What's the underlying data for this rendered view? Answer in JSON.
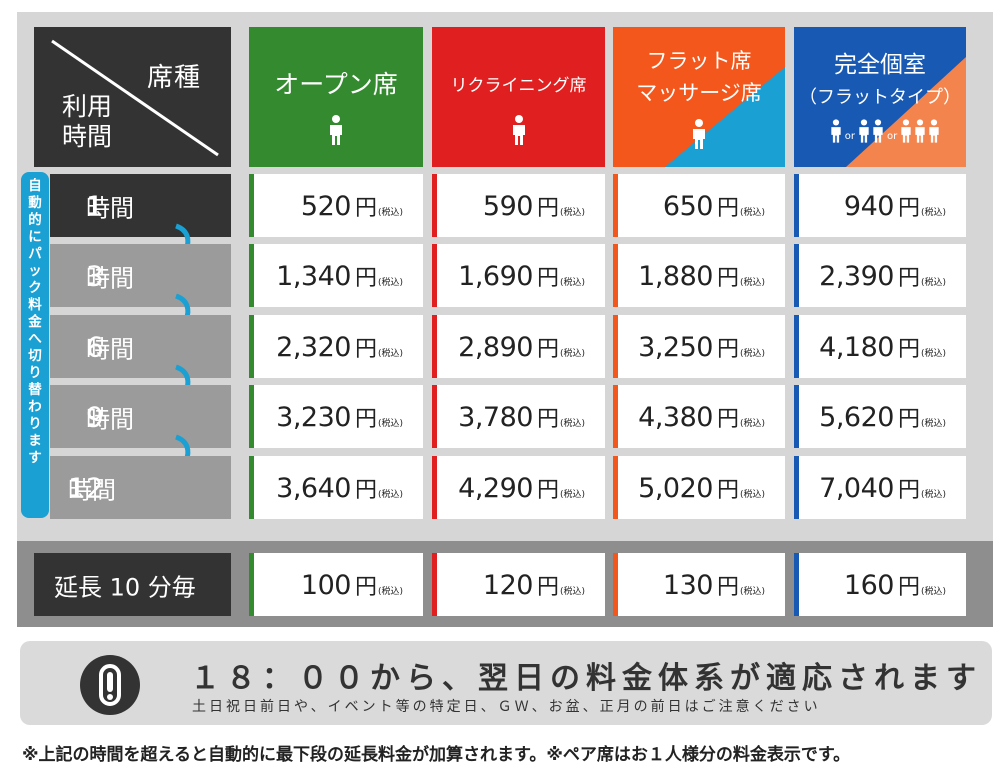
{
  "header": {
    "corner_seat": "席種",
    "corner_time": "利用時間",
    "columns": [
      {
        "label": "オープン席",
        "color": "#338a2f",
        "icon": "person-icon"
      },
      {
        "label": "リクライニング席",
        "color": "#e02020",
        "icon": "person-icon"
      },
      {
        "label_line1": "フラット席",
        "label_line2": "マッサージ席",
        "color": "#f4571b",
        "accent": "#1aa0d2",
        "icon": "person-icon"
      },
      {
        "label_line1": "完全個室",
        "label_line2": "（フラットタイプ）",
        "color": "#1859b4",
        "accent": "#f4844d",
        "icon": "person-group-icon",
        "or1": "or",
        "or2": "or"
      }
    ]
  },
  "side_note": "自動的にパック料金へ切り替わります",
  "tax_label": "(税込)",
  "yen": "円",
  "rows": [
    {
      "label_num": "1",
      "label_unit": "時間",
      "prices": [
        "520",
        "590",
        "650",
        "940"
      ]
    },
    {
      "label_num": "3",
      "label_unit": "時間",
      "prices": [
        "1,340",
        "1,690",
        "1,880",
        "2,390"
      ]
    },
    {
      "label_num": "6",
      "label_unit": "時間",
      "prices": [
        "2,320",
        "2,890",
        "3,250",
        "4,180"
      ]
    },
    {
      "label_num": "9",
      "label_unit": "時間",
      "prices": [
        "3,230",
        "3,780",
        "4,380",
        "5,620"
      ]
    },
    {
      "label_num": "12",
      "label_unit": "時間",
      "prices": [
        "3,640",
        "4,290",
        "5,020",
        "7,040"
      ]
    }
  ],
  "extension": {
    "label": "延長 10 分毎",
    "prices": [
      "100",
      "120",
      "130",
      "160"
    ]
  },
  "notice": {
    "line1": "１８：００から、翌日の料金体系が適応されます",
    "line2": "土日祝日前日や、イベント等の特定日、ＧＷ、お盆、正月の前日はご注意ください"
  },
  "footer": "※上記の時間を超えると自動的に最下段の延長料金が加算されます。※ペア席はお１人様分の料金表示です。"
}
